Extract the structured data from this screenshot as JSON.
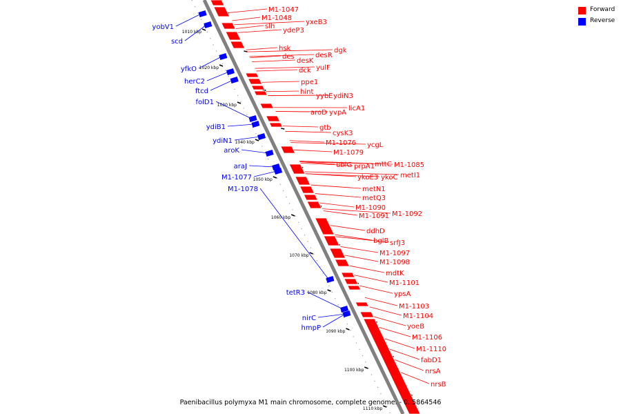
{
  "caption": "Paenibacillus polymyxa M1 main chromosome, complete genome. - 0..5864546",
  "legend": [
    {
      "label": "Forward",
      "color": "#ff0000"
    },
    {
      "label": "Reverse",
      "color": "#0000ff"
    }
  ],
  "colors": {
    "forward": "#ff0000",
    "reverse": "#0000ff",
    "backbone": "#808080",
    "tick": "#000000"
  },
  "ticks": [
    "1010 kbp",
    "1020 kbp",
    "1030 kbp",
    "1040 kbp",
    "1050 kbp",
    "1060 kbp",
    "1070 kbp",
    "1080 kbp",
    "1090 kbp",
    "1100 kbp",
    "1110 kbp"
  ],
  "forward_labels": [
    "M1-1047",
    "M1-1048",
    "slh",
    "yxeB3",
    "ydeP3",
    "hsk",
    "des",
    "desK",
    "desR",
    "dgk",
    "dck",
    "yulF",
    "ppe1",
    "hint",
    "yybE",
    "ydiN3",
    "licA1",
    "aroD",
    "yvpA",
    "gtb",
    "cysK3",
    "M1-1076",
    "ycgL",
    "M1-1079",
    "ubiG",
    "prpA1",
    "mttC",
    "M1-1085",
    "ykoE3",
    "ykoC",
    "metI1",
    "metN1",
    "metQ3",
    "M1-1090",
    "M1-1091",
    "M1-1092",
    "ddhD",
    "bglB",
    "srfJ3",
    "M1-1097",
    "M1-1098",
    "mdtK",
    "M1-1101",
    "ypsA",
    "M1-1103",
    "M1-1104",
    "yoeB",
    "M1-1106",
    "M1-1110",
    "fabD1",
    "nrsA",
    "nrsB"
  ],
  "reverse_labels": [
    "yobV1",
    "scd",
    "yfkO",
    "herC2",
    "ftcd",
    "folD1",
    "ydiB1",
    "ydiN1",
    "aroK",
    "araJ",
    "M1-1077",
    "M1-1078",
    "tetR3",
    "nirC",
    "hmpP"
  ]
}
